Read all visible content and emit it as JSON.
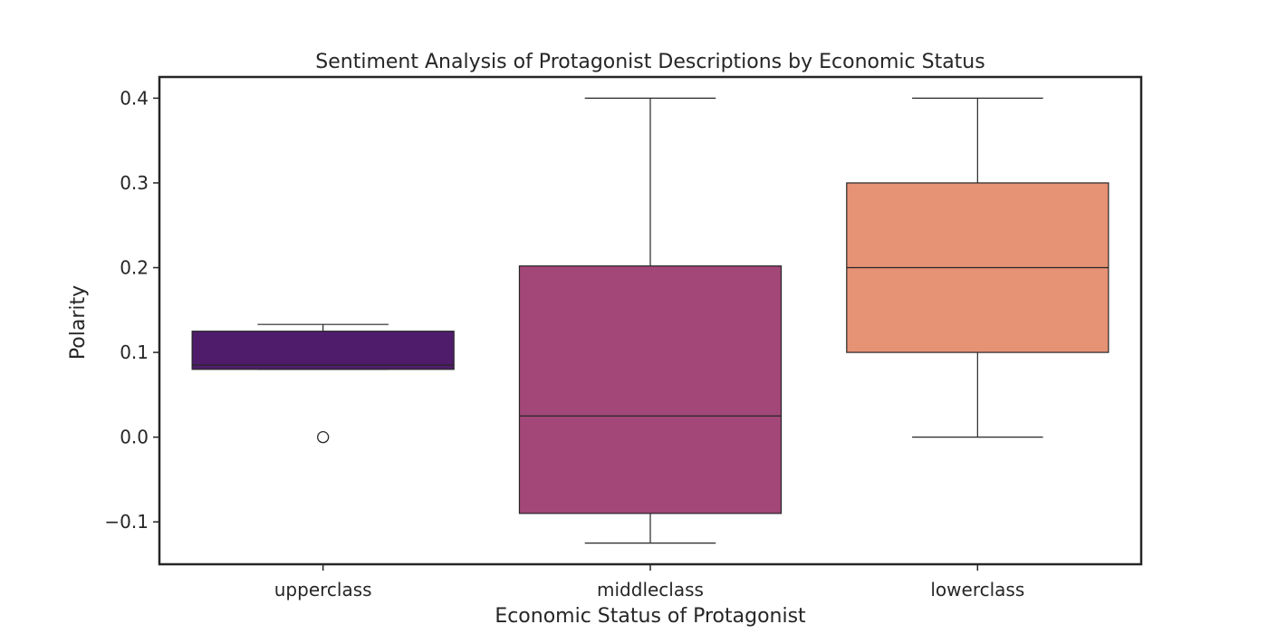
{
  "chart_data": {
    "type": "box",
    "title": "Sentiment Analysis of Protagonist Descriptions by Economic Status",
    "xlabel": "Economic Status of Protagonist",
    "ylabel": "Polarity",
    "ylim": [
      -0.15,
      0.425
    ],
    "yticks": [
      -0.1,
      0.0,
      0.1,
      0.2,
      0.3,
      0.4
    ],
    "ytick_labels": [
      "−0.1",
      "0.0",
      "0.1",
      "0.2",
      "0.3",
      "0.4"
    ],
    "grid": false,
    "categories": [
      "upperclass",
      "middleclass",
      "lowerclass"
    ],
    "boxes": [
      {
        "category": "upperclass",
        "color": "#4f1c6b",
        "whisker_low": 0.08,
        "q1": 0.08,
        "median": 0.085,
        "q3": 0.125,
        "whisker_high": 0.133,
        "outliers": [
          0.0
        ]
      },
      {
        "category": "middleclass",
        "color": "#a34778",
        "whisker_low": -0.125,
        "q1": -0.09,
        "median": 0.025,
        "q3": 0.202,
        "whisker_high": 0.4,
        "outliers": []
      },
      {
        "category": "lowerclass",
        "color": "#e69275",
        "whisker_low": 0.0,
        "q1": 0.1,
        "median": 0.2,
        "q3": 0.3,
        "whisker_high": 0.4,
        "outliers": []
      }
    ]
  }
}
